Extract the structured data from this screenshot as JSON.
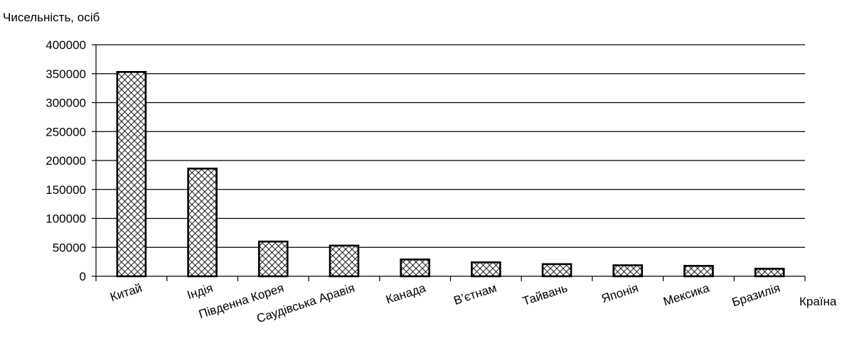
{
  "chart_data": {
    "type": "bar",
    "title": "",
    "ylabel": "Чисельність, осіб",
    "xlabel": "Країна",
    "categories": [
      "Китай",
      "Індія",
      "Південна Корея",
      "Саудівська Аравія",
      "Канада",
      "В’єтнам",
      "Тайвань",
      "Японія",
      "Мексика",
      "Бразилія"
    ],
    "values": [
      353000,
      186000,
      60000,
      53000,
      29000,
      24000,
      21000,
      19000,
      18000,
      13000
    ],
    "ylim": [
      0,
      400000
    ],
    "yticks": [
      "0",
      "50000",
      "100000",
      "150000",
      "200000",
      "250000",
      "300000",
      "350000",
      "400000"
    ],
    "grid": true,
    "bar_fill": "crosshatch",
    "colors": {
      "bar_stroke": "#000000",
      "bar_fill": "#ffffff",
      "grid": "#000000"
    }
  }
}
